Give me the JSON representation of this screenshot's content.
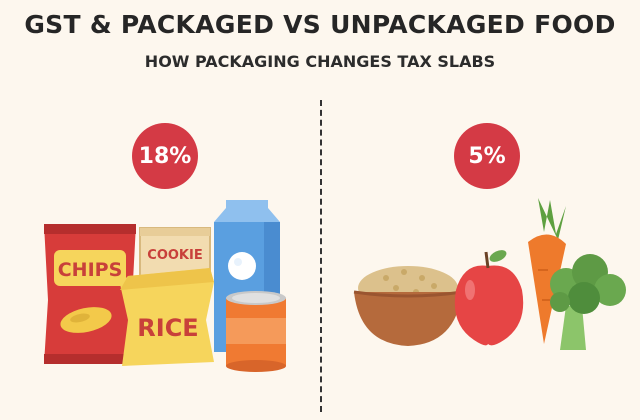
{
  "header": {
    "title": "GST & PACKAGED VS UNPACKAGED FOOD",
    "subtitle": "HOW PACKAGING CHANGES TAX SLABS"
  },
  "packaged": {
    "rate": "18%",
    "items": {
      "chips_label": "CHIPS",
      "cookie_label": "COOKIE",
      "rice_label": "RICE"
    },
    "icons": [
      "chips-bag-icon",
      "cookie-box-icon",
      "rice-bag-icon",
      "milk-carton-icon",
      "tin-can-icon"
    ]
  },
  "unpackaged": {
    "rate": "5%",
    "icons": [
      "grain-bowl-icon",
      "apple-icon",
      "carrot-icon",
      "broccoli-icon"
    ]
  },
  "colors": {
    "background": "#fdf7ee",
    "badge": "#d43a45",
    "chips_bag": "#d73c3a",
    "rice_bag": "#f6d55c",
    "carton": "#5a9fe0",
    "can": "#f07a32",
    "apple": "#e64545",
    "carrot": "#ee7a2c",
    "broccoli": "#6aa84f"
  }
}
